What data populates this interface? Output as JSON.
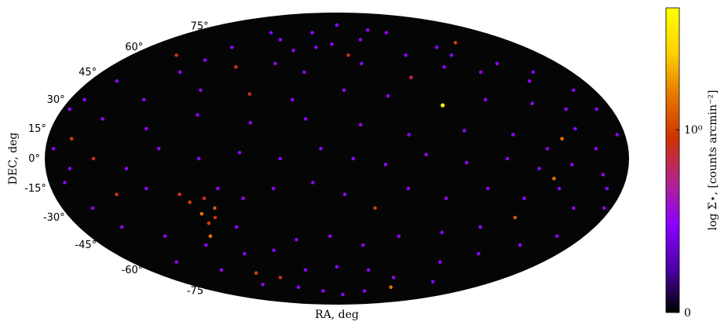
{
  "chart_data": {
    "type": "scatter",
    "projection": "mollweide",
    "title": "",
    "xlabel": "RA, deg",
    "ylabel": "DEC, deg",
    "dec_ticks": [
      {
        "value": 75,
        "label": "75°"
      },
      {
        "value": 60,
        "label": "60°"
      },
      {
        "value": 45,
        "label": "45°"
      },
      {
        "value": 30,
        "label": "30°"
      },
      {
        "value": 15,
        "label": "15°"
      },
      {
        "value": 0,
        "label": "0°"
      },
      {
        "value": -15,
        "label": "-15°"
      },
      {
        "value": -30,
        "label": "-30°"
      },
      {
        "value": -45,
        "label": "-45°"
      },
      {
        "value": -60,
        "label": "-60°"
      },
      {
        "value": -75,
        "label": "-75°"
      }
    ],
    "grid": false,
    "background_color": "#050505",
    "colorbar": {
      "label": "log Σ⋆, [counts arcmin⁻²]",
      "colormap": "gnuplot",
      "ticks": [
        {
          "value": 0,
          "label": "0"
        },
        {
          "value": 0.6,
          "label": "10⁰"
        }
      ],
      "range": [
        0,
        1
      ],
      "colors": [
        "#000000",
        "#4b00a6",
        "#8a00ff",
        "#b2238f",
        "#cc3300",
        "#e67800",
        "#ffd400",
        "#ffff00"
      ]
    },
    "points": [
      {
        "ra": 0,
        "dec": 76,
        "c": 0.3
      },
      {
        "ra": 40,
        "dec": 72,
        "c": 0.3
      },
      {
        "ra": -30,
        "dec": 70,
        "c": 0.3
      },
      {
        "ra": 120,
        "dec": 63,
        "c": 0.6
      },
      {
        "ra": 95,
        "dec": 60,
        "c": 0.3
      },
      {
        "ra": 60,
        "dec": 55,
        "c": 0.3
      },
      {
        "ra": 10,
        "dec": 55,
        "c": 0.55
      },
      {
        "ra": -20,
        "dec": 60,
        "c": 0.3
      },
      {
        "ra": -60,
        "dec": 65,
        "c": 0.3
      },
      {
        "ra": -100,
        "dec": 60,
        "c": 0.3
      },
      {
        "ra": -140,
        "dec": 55,
        "c": 0.55
      },
      {
        "ra": -160,
        "dec": 40,
        "c": 0.3
      },
      {
        "ra": -120,
        "dec": 45,
        "c": 0.3
      },
      {
        "ra": -80,
        "dec": 48,
        "c": 0.55
      },
      {
        "ra": -50,
        "dec": 50,
        "c": 0.3
      },
      {
        "ra": -25,
        "dec": 45,
        "c": 0.3
      },
      {
        "ra": 20,
        "dec": 50,
        "c": 0.3
      },
      {
        "ra": 55,
        "dec": 42,
        "c": 0.5
      },
      {
        "ra": 85,
        "dec": 48,
        "c": 0.3
      },
      {
        "ra": 110,
        "dec": 45,
        "c": 0.3
      },
      {
        "ra": 140,
        "dec": 40,
        "c": 0.3
      },
      {
        "ra": 165,
        "dec": 35,
        "c": 0.3
      },
      {
        "ra": -170,
        "dec": 30,
        "c": 0.3
      },
      {
        "ra": -130,
        "dec": 30,
        "c": 0.3
      },
      {
        "ra": -95,
        "dec": 35,
        "c": 0.3
      },
      {
        "ra": -60,
        "dec": 33,
        "c": 0.55
      },
      {
        "ra": -30,
        "dec": 30,
        "c": 0.3
      },
      {
        "ra": 5,
        "dec": 35,
        "c": 0.3
      },
      {
        "ra": 35,
        "dec": 32,
        "c": 0.3
      },
      {
        "ra": 70,
        "dec": 27,
        "c": 0.95
      },
      {
        "ra": 100,
        "dec": 30,
        "c": 0.3
      },
      {
        "ra": 130,
        "dec": 28,
        "c": 0.3
      },
      {
        "ra": 150,
        "dec": 25,
        "c": 0.3
      },
      {
        "ra": -150,
        "dec": 20,
        "c": 0.3
      },
      {
        "ra": -120,
        "dec": 15,
        "c": 0.3
      },
      {
        "ra": -90,
        "dec": 22,
        "c": 0.3
      },
      {
        "ra": -55,
        "dec": 18,
        "c": 0.3
      },
      {
        "ra": -20,
        "dec": 20,
        "c": 0.3
      },
      {
        "ra": 15,
        "dec": 17,
        "c": 0.3
      },
      {
        "ra": 45,
        "dec": 12,
        "c": 0.3
      },
      {
        "ra": 80,
        "dec": 14,
        "c": 0.3
      },
      {
        "ra": 110,
        "dec": 12,
        "c": 0.3
      },
      {
        "ra": 140,
        "dec": 10,
        "c": 0.7
      },
      {
        "ra": 160,
        "dec": 5,
        "c": 0.3
      },
      {
        "ra": 175,
        "dec": 12,
        "c": 0.3
      },
      {
        "ra": -175,
        "dec": 5,
        "c": 0.3
      },
      {
        "ra": -165,
        "dec": 10,
        "c": 0.6
      },
      {
        "ra": -150,
        "dec": 0,
        "c": 0.55
      },
      {
        "ra": -130,
        "dec": -5,
        "c": 0.3
      },
      {
        "ra": -110,
        "dec": 5,
        "c": 0.3
      },
      {
        "ra": -85,
        "dec": 0,
        "c": 0.3
      },
      {
        "ra": -60,
        "dec": 3,
        "c": 0.3
      },
      {
        "ra": -35,
        "dec": 0,
        "c": 0.3
      },
      {
        "ra": -10,
        "dec": 5,
        "c": 0.3
      },
      {
        "ra": 10,
        "dec": 0,
        "c": 0.3
      },
      {
        "ra": 30,
        "dec": -3,
        "c": 0.3
      },
      {
        "ra": 55,
        "dec": 2,
        "c": 0.3
      },
      {
        "ra": 80,
        "dec": -2,
        "c": 0.3
      },
      {
        "ra": 105,
        "dec": 0,
        "c": 0.3
      },
      {
        "ra": 125,
        "dec": -5,
        "c": 0.3
      },
      {
        "ra": 145,
        "dec": -3,
        "c": 0.3
      },
      {
        "ra": 165,
        "dec": -8,
        "c": 0.3
      },
      {
        "ra": -170,
        "dec": -12,
        "c": 0.3
      },
      {
        "ra": -140,
        "dec": -18,
        "c": 0.55
      },
      {
        "ra": -120,
        "dec": -15,
        "c": 0.3
      },
      {
        "ra": -100,
        "dec": -18,
        "c": 0.55
      },
      {
        "ra": -95,
        "dec": -22,
        "c": 0.6
      },
      {
        "ra": -90,
        "dec": -28,
        "c": 0.7
      },
      {
        "ra": -85,
        "dec": -20,
        "c": 0.55
      },
      {
        "ra": -80,
        "dec": -25,
        "c": 0.65
      },
      {
        "ra": -88,
        "dec": -33,
        "c": 0.6
      },
      {
        "ra": -82,
        "dec": -30,
        "c": 0.55
      },
      {
        "ra": -92,
        "dec": -40,
        "c": 0.7
      },
      {
        "ra": -75,
        "dec": -15,
        "c": 0.3
      },
      {
        "ra": -70,
        "dec": -35,
        "c": 0.3
      },
      {
        "ra": -60,
        "dec": -20,
        "c": 0.3
      },
      {
        "ra": -40,
        "dec": -15,
        "c": 0.3
      },
      {
        "ra": -15,
        "dec": -12,
        "c": 0.3
      },
      {
        "ra": 5,
        "dec": -18,
        "c": 0.3
      },
      {
        "ra": 25,
        "dec": -25,
        "c": 0.6
      },
      {
        "ra": 45,
        "dec": -15,
        "c": 0.3
      },
      {
        "ra": 70,
        "dec": -20,
        "c": 0.3
      },
      {
        "ra": 95,
        "dec": -15,
        "c": 0.3
      },
      {
        "ra": 120,
        "dec": -20,
        "c": 0.3
      },
      {
        "ra": 140,
        "dec": -15,
        "c": 0.3
      },
      {
        "ra": 155,
        "dec": -25,
        "c": 0.3
      },
      {
        "ra": 120,
        "dec": -30,
        "c": 0.65
      },
      {
        "ra": 100,
        "dec": -35,
        "c": 0.3
      },
      {
        "ra": 75,
        "dec": -38,
        "c": 0.3
      },
      {
        "ra": 45,
        "dec": -40,
        "c": 0.3
      },
      {
        "ra": 20,
        "dec": -45,
        "c": 0.3
      },
      {
        "ra": -5,
        "dec": -40,
        "c": 0.3
      },
      {
        "ra": -30,
        "dec": -42,
        "c": 0.3
      },
      {
        "ra": -50,
        "dec": -48,
        "c": 0.3
      },
      {
        "ra": -75,
        "dec": -50,
        "c": 0.3
      },
      {
        "ra": -100,
        "dec": -45,
        "c": 0.3
      },
      {
        "ra": -125,
        "dec": -40,
        "c": 0.3
      },
      {
        "ra": -150,
        "dec": -35,
        "c": 0.3
      },
      {
        "ra": -140,
        "dec": -55,
        "c": 0.3
      },
      {
        "ra": -110,
        "dec": -60,
        "c": 0.3
      },
      {
        "ra": -80,
        "dec": -62,
        "c": 0.6
      },
      {
        "ra": -60,
        "dec": -65,
        "c": 0.55
      },
      {
        "ra": -30,
        "dec": -60,
        "c": 0.3
      },
      {
        "ra": 0,
        "dec": -58,
        "c": 0.3
      },
      {
        "ra": 30,
        "dec": -60,
        "c": 0.3
      },
      {
        "ra": 60,
        "dec": -65,
        "c": 0.3
      },
      {
        "ra": 90,
        "dec": -55,
        "c": 0.3
      },
      {
        "ra": 115,
        "dec": -50,
        "c": 0.3
      },
      {
        "ra": 140,
        "dec": -45,
        "c": 0.3
      },
      {
        "ra": 160,
        "dec": -40,
        "c": 0.3
      },
      {
        "ra": 70,
        "dec": -72,
        "c": 0.7
      },
      {
        "ra": 40,
        "dec": -75,
        "c": 0.3
      },
      {
        "ra": 10,
        "dec": -78,
        "c": 0.3
      },
      {
        "ra": -20,
        "dec": -75,
        "c": 0.3
      },
      {
        "ra": -50,
        "dec": -72,
        "c": 0.3
      },
      {
        "ra": -90,
        "dec": -70,
        "c": 0.3
      },
      {
        "ra": 110,
        "dec": -68,
        "c": 0.3
      },
      {
        "ra": 130,
        "dec": 50,
        "c": 0.3
      },
      {
        "ra": 150,
        "dec": 45,
        "c": 0.3
      },
      {
        "ra": 170,
        "dec": 25,
        "c": 0.3
      },
      {
        "ra": -175,
        "dec": 25,
        "c": 0.3
      },
      {
        "ra": -160,
        "dec": -25,
        "c": 0.3
      },
      {
        "ra": -165,
        "dec": -5,
        "c": 0.3
      },
      {
        "ra": 170,
        "dec": -15,
        "c": 0.3
      },
      {
        "ra": 175,
        "dec": -25,
        "c": 0.3
      },
      {
        "ra": 130,
        "dec": 5,
        "c": 0.3
      },
      {
        "ra": 135,
        "dec": -10,
        "c": 0.7
      },
      {
        "ra": 150,
        "dec": 15,
        "c": 0.3
      },
      {
        "ra": 60,
        "dec": 70,
        "c": 0.3
      },
      {
        "ra": -80,
        "dec": 70,
        "c": 0.3
      },
      {
        "ra": 25,
        "dec": 65,
        "c": 0.3
      },
      {
        "ra": -110,
        "dec": 52,
        "c": 0.3
      },
      {
        "ra": 100,
        "dec": 55,
        "c": 0.3
      },
      {
        "ra": -40,
        "dec": 58,
        "c": 0.3
      },
      {
        "ra": -5,
        "dec": 62,
        "c": 0.3
      }
    ]
  }
}
